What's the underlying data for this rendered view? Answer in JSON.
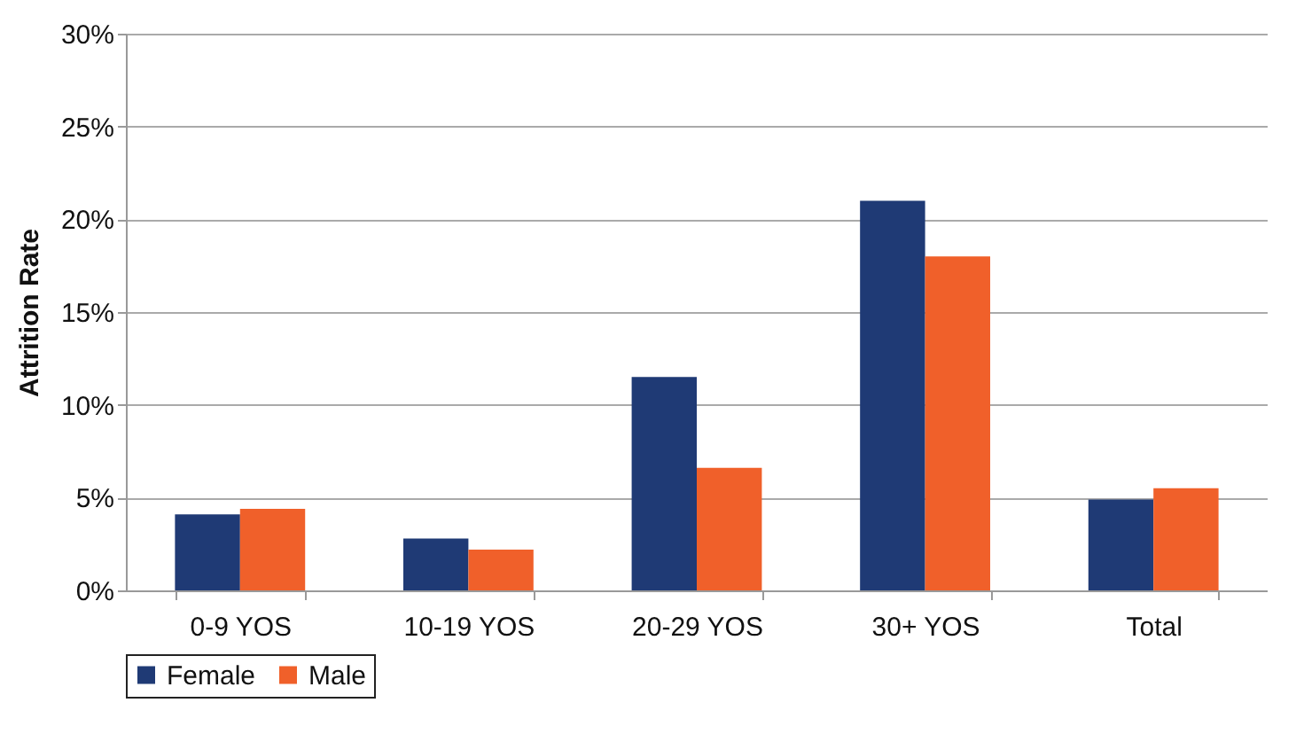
{
  "chart_data": {
    "type": "bar",
    "ylabel": "Attrition Rate",
    "categories": [
      "0-9 YOS",
      "10-19 YOS",
      "20-29 YOS",
      "30+ YOS",
      "Total"
    ],
    "series": [
      {
        "name": "Female",
        "color": "#1f3a75",
        "values": [
          4.1,
          2.8,
          11.5,
          21.0,
          4.9
        ]
      },
      {
        "name": "Male",
        "color": "#f0602a",
        "values": [
          4.4,
          2.2,
          6.6,
          18.0,
          5.5
        ]
      }
    ],
    "ylim": [
      0,
      30
    ],
    "yticks": [
      {
        "value": 0,
        "label": "0%"
      },
      {
        "value": 5,
        "label": "5%"
      },
      {
        "value": 10,
        "label": "10%"
      },
      {
        "value": 15,
        "label": "15%"
      },
      {
        "value": 20,
        "label": "20%"
      },
      {
        "value": 25,
        "label": "25%"
      },
      {
        "value": 30,
        "label": "30%"
      }
    ],
    "grid": "y",
    "legend": "bottom"
  }
}
